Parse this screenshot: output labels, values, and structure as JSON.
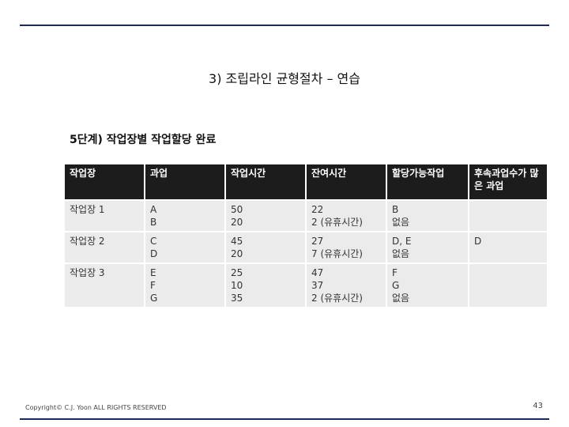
{
  "title": "3) 조립라인 균형절차 – 연습",
  "subtitle": "5단계) 작업장별 작업할당 완료",
  "table": {
    "header": [
      "작업장",
      "과업",
      "작업시간",
      "잔여시간",
      "할당가능작업",
      "후속과업수가 많은 과업"
    ],
    "rows": [
      [
        [
          "작업장 1"
        ],
        [
          "A",
          "B"
        ],
        [
          "50",
          "20"
        ],
        [
          "22",
          "2 (유휴시간)"
        ],
        [
          "B",
          "없음"
        ],
        []
      ],
      [
        [
          "작업장 2"
        ],
        [
          "C",
          "D"
        ],
        [
          "45",
          "20"
        ],
        [
          "27",
          "7 (유휴시간)"
        ],
        [
          "D, E",
          "없음"
        ],
        [
          "D"
        ]
      ],
      [
        [
          "작업장 3"
        ],
        [
          "E",
          "F",
          "G"
        ],
        [
          "25",
          "10",
          "35"
        ],
        [
          "47",
          "37",
          "2 (유휴시간)"
        ],
        [
          "F",
          "G",
          "없음"
        ],
        []
      ]
    ]
  },
  "footer": "Copyright© C.J. Yoon ALL RIGHTS RESERVED",
  "page_number": "43"
}
